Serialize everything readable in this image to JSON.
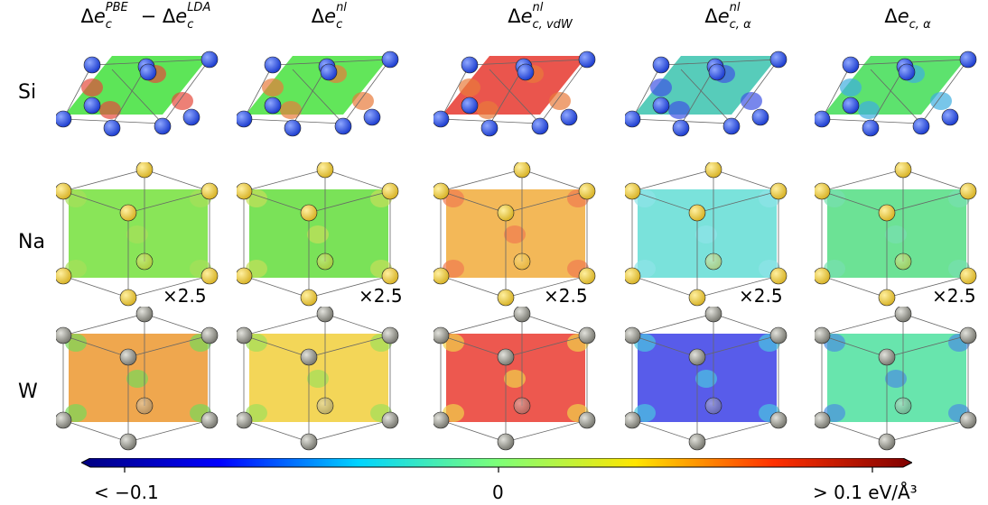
{
  "column_headers": [
    {
      "sym": "Δ",
      "base": "e",
      "sup": "PBE",
      "sub": "c",
      "minus": " − ",
      "base2": "e",
      "sup2": "LDA",
      "sub2": "c"
    },
    {
      "sym": "Δ",
      "base": "e",
      "sup": "nl",
      "sub": "c"
    },
    {
      "sym": "Δ",
      "base": "e",
      "sup": "nl",
      "sub": "c, vdW"
    },
    {
      "sym": "Δ",
      "base": "e",
      "sup": "nl",
      "sub": "c, α"
    },
    {
      "sym": "Δ",
      "base": "e",
      "sup": "",
      "sub": "c, α"
    }
  ],
  "rows": [
    {
      "label": "Si",
      "atom_color": "#1f3fd0",
      "atom_highlight": "#8fa8ff",
      "scale_note": "",
      "panel_colors": [
        "#4fe34a",
        "#55e44c",
        "#e8473e",
        "#49c8b4",
        "#4fe062"
      ],
      "panel_spots": [
        "#e64a3c",
        "#e87a3a",
        "#e87a3a",
        "#3f54e4",
        "#3faee0"
      ]
    },
    {
      "label": "Na",
      "atom_color": "#d9b42a",
      "atom_highlight": "#fff0a0",
      "scale_note": "×2.5",
      "panel_colors": [
        "#7fe34a",
        "#6fe04a",
        "#f2b24a",
        "#6fe0d8",
        "#5fe08c"
      ],
      "panel_spots": [
        "#a6e05a",
        "#c4e05a",
        "#f07a50",
        "#8fe4e8",
        "#78e0b0"
      ]
    },
    {
      "label": "W",
      "atom_color": "#7a7a72",
      "atom_highlight": "#e2e2dc",
      "scale_note": "",
      "panel_colors": [
        "#eea03f",
        "#f2d24a",
        "#ec4a40",
        "#4a4ee8",
        "#5be3a6"
      ],
      "panel_spots": [
        "#78d858",
        "#9ee05a",
        "#f0d24a",
        "#4ac6e0",
        "#4a8ee0"
      ]
    }
  ],
  "colorbar": {
    "stops": [
      "#00007f",
      "#0000ff",
      "#00d4ff",
      "#7cff79",
      "#ffe600",
      "#ff3000",
      "#7f0000"
    ],
    "min_label": "< −0.1",
    "mid_label": "0",
    "max_label": "> 0.1 eV/Å³"
  }
}
